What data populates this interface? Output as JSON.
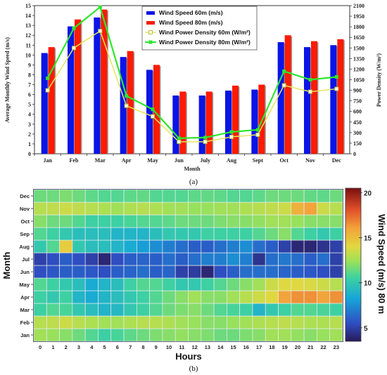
{
  "chart_data": [
    {
      "type": "bar",
      "panel_label": "(a)",
      "categories": [
        "Jan",
        "Feb",
        "Mar",
        "Apr",
        "May",
        "Jun",
        "July",
        "Aug",
        "Sept",
        "Oct",
        "Nov",
        "Dec"
      ],
      "xlabel": "Month",
      "ylabel": "Average Monthly Wind Speed (m/s)",
      "ylabel_right": "Power Density (W/m²)",
      "ylim": [
        0,
        15
      ],
      "ylim_right": [
        0,
        2100
      ],
      "yticks": [
        "0",
        "1",
        "2",
        "3",
        "4",
        "5",
        "6",
        "7",
        "8",
        "9",
        "10",
        "11",
        "12",
        "13",
        "14",
        "15"
      ],
      "yticks_right": [
        "0",
        "150",
        "300",
        "450",
        "600",
        "750",
        "900",
        "1050",
        "1200",
        "1350",
        "1500",
        "1650",
        "1800",
        "1950",
        "2100"
      ],
      "series": [
        {
          "name": "Wind Speed 60m (m/s)",
          "kind": "bar",
          "axis": "left",
          "color": "#0a14e6",
          "values": [
            10.2,
            12.9,
            13.8,
            9.8,
            8.5,
            5.9,
            5.9,
            6.4,
            6.5,
            11.3,
            10.8,
            11.0
          ]
        },
        {
          "name": "Wind Speed 80m (m/s)",
          "kind": "bar",
          "axis": "left",
          "color": "#ff1a00",
          "values": [
            10.8,
            13.6,
            14.6,
            10.4,
            9.0,
            6.3,
            6.3,
            6.9,
            7.0,
            12.0,
            11.4,
            11.6
          ]
        },
        {
          "name": "Wind Power Density 60m (W/m²)",
          "kind": "line",
          "axis": "right",
          "color": "#e6e65a",
          "values": [
            900,
            1500,
            1740,
            680,
            530,
            170,
            170,
            240,
            270,
            970,
            880,
            920
          ]
        },
        {
          "name": "Wind Power Density 80m (W/m²)",
          "kind": "line",
          "axis": "right",
          "color": "#2ee62e",
          "values": [
            1070,
            1780,
            2080,
            820,
            630,
            220,
            230,
            310,
            340,
            1170,
            1050,
            1090
          ]
        }
      ],
      "legend": "top-right"
    },
    {
      "type": "heatmap",
      "panel_label": "(b)",
      "xlabel": "Hours",
      "ylabel": "Month",
      "colorbar_label": "Wind Speed (m/s) 80 m",
      "colorbar_ticks": [
        "5",
        "10",
        "15",
        "20"
      ],
      "zlim": [
        3.5,
        20.5
      ],
      "x": [
        "0",
        "1",
        "2",
        "3",
        "4",
        "5",
        "6",
        "7",
        "8",
        "9",
        "10",
        "11",
        "12",
        "13",
        "14",
        "15",
        "16",
        "17",
        "18",
        "19",
        "20",
        "21",
        "22",
        "23"
      ],
      "y": [
        "Jan",
        "Feb",
        "Mar",
        "Apr",
        "May",
        "Jun",
        "Jul",
        "Aug",
        "Sep",
        "Oct",
        "Nov",
        "Dec"
      ],
      "values": [
        [
          12.5,
          12.3,
          12.0,
          11.5,
          11.0,
          10.5,
          10.8,
          11.2,
          11.5,
          11.8,
          12.0,
          12.2,
          12.0,
          11.8,
          11.5,
          11.5,
          11.8,
          12.0,
          12.5,
          12.5,
          12.2,
          12.0,
          12.3,
          12.5
        ],
        [
          13.0,
          13.2,
          13.5,
          13.0,
          12.8,
          12.5,
          12.5,
          12.8,
          13.0,
          13.0,
          12.8,
          12.5,
          12.3,
          12.0,
          12.0,
          12.3,
          12.5,
          12.8,
          13.0,
          13.2,
          13.0,
          12.8,
          12.8,
          13.0
        ],
        [
          10.5,
          11.0,
          10.8,
          10.0,
          9.5,
          9.0,
          9.2,
          10.0,
          10.5,
          11.0,
          11.5,
          11.8,
          12.0,
          11.5,
          11.0,
          10.8,
          10.5,
          9.0,
          10.0,
          10.5,
          11.0,
          11.0,
          10.8,
          10.5
        ],
        [
          10.5,
          10.0,
          10.5,
          9.0,
          8.5,
          9.0,
          9.5,
          10.0,
          10.5,
          11.0,
          11.5,
          12.0,
          12.5,
          12.0,
          12.0,
          12.5,
          13.0,
          13.5,
          14.0,
          16.0,
          16.5,
          16.5,
          16.0,
          16.5
        ],
        [
          11.0,
          10.5,
          10.0,
          9.5,
          8.5,
          9.0,
          9.5,
          10.5,
          11.0,
          11.0,
          10.5,
          10.0,
          10.0,
          10.5,
          11.0,
          11.5,
          12.0,
          12.5,
          13.5,
          14.0,
          14.0,
          13.8,
          13.5,
          13.0
        ],
        [
          5.5,
          5.8,
          6.0,
          6.0,
          5.8,
          5.5,
          6.0,
          6.2,
          6.5,
          6.0,
          6.2,
          5.0,
          4.8,
          4.0,
          5.5,
          6.0,
          6.5,
          6.5,
          6.5,
          6.2,
          6.0,
          5.8,
          5.5,
          5.0
        ],
        [
          5.0,
          5.5,
          6.0,
          5.5,
          5.0,
          4.0,
          5.5,
          6.0,
          6.2,
          6.0,
          6.5,
          6.0,
          6.5,
          7.0,
          7.0,
          7.5,
          7.0,
          4.5,
          6.5,
          6.8,
          6.5,
          6.0,
          6.5,
          5.0
        ],
        [
          10.0,
          11.0,
          14.5,
          10.0,
          9.5,
          9.5,
          9.0,
          8.5,
          8.0,
          7.5,
          7.0,
          6.5,
          6.0,
          6.0,
          6.5,
          7.0,
          7.5,
          6.5,
          6.0,
          5.0,
          4.0,
          4.0,
          4.5,
          5.0
        ],
        [
          11.0,
          10.5,
          10.0,
          9.5,
          9.5,
          9.5,
          9.0,
          9.0,
          9.0,
          9.5,
          10.0,
          10.0,
          10.0,
          10.5,
          10.5,
          10.5,
          10.5,
          11.0,
          11.5,
          12.0,
          11.0,
          10.5,
          10.0,
          10.5
        ],
        [
          12.0,
          11.5,
          11.5,
          11.0,
          10.5,
          10.5,
          10.5,
          10.8,
          11.0,
          11.0,
          11.2,
          11.5,
          11.5,
          11.5,
          11.8,
          12.0,
          12.0,
          12.2,
          12.5,
          12.5,
          12.3,
          12.0,
          12.0,
          12.0
        ],
        [
          13.0,
          13.2,
          13.5,
          13.2,
          13.0,
          12.8,
          12.5,
          12.8,
          13.0,
          12.8,
          12.5,
          12.5,
          12.3,
          12.3,
          12.5,
          12.5,
          12.8,
          13.0,
          13.2,
          13.5,
          15.5,
          16.0,
          13.5,
          13.0
        ],
        [
          11.5,
          11.5,
          11.8,
          11.5,
          11.2,
          11.0,
          11.0,
          11.2,
          11.3,
          11.0,
          11.0,
          11.0,
          11.2,
          11.3,
          11.2,
          11.0,
          11.0,
          11.2,
          11.5,
          11.5,
          11.5,
          11.3,
          11.2,
          11.5
        ]
      ]
    }
  ]
}
